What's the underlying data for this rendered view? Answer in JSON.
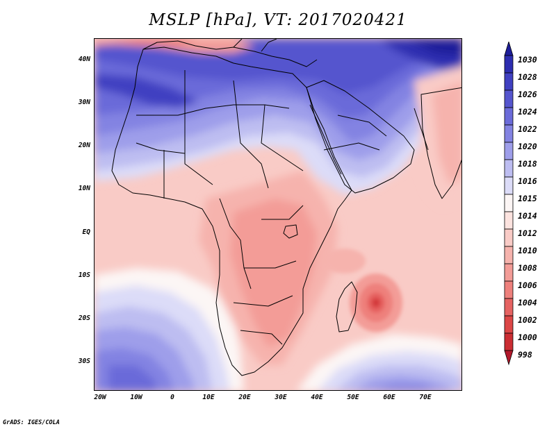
{
  "title": "MSLP [hPa], VT: 2017020421",
  "credit": "GrADS: IGES/COLA",
  "lat_labels": [
    "40N",
    "30N",
    "20N",
    "10N",
    "EQ",
    "10S",
    "20S",
    "30S"
  ],
  "lon_labels": [
    "20W",
    "10W",
    "0",
    "10E",
    "20E",
    "30E",
    "40E",
    "50E",
    "60E",
    "70E"
  ],
  "colorbar": {
    "levels": [
      "998",
      "1000",
      "1002",
      "1004",
      "1006",
      "1008",
      "1010",
      "1012",
      "1014",
      "1015",
      "1016",
      "1018",
      "1020",
      "1022",
      "1024",
      "1026",
      "1028",
      "1030"
    ],
    "colors": [
      "#b2182b",
      "#cb2d33",
      "#dc4646",
      "#e66362",
      "#ee807c",
      "#f39c97",
      "#f6b3ad",
      "#f9cbc6",
      "#fce3df",
      "#fcf6f5",
      "#dcdcf8",
      "#bdbdf1",
      "#9e9eea",
      "#8383e2",
      "#6b6bd9",
      "#5555ce",
      "#4040c1",
      "#2d2db0",
      "#1d1d9a"
    ]
  }
}
